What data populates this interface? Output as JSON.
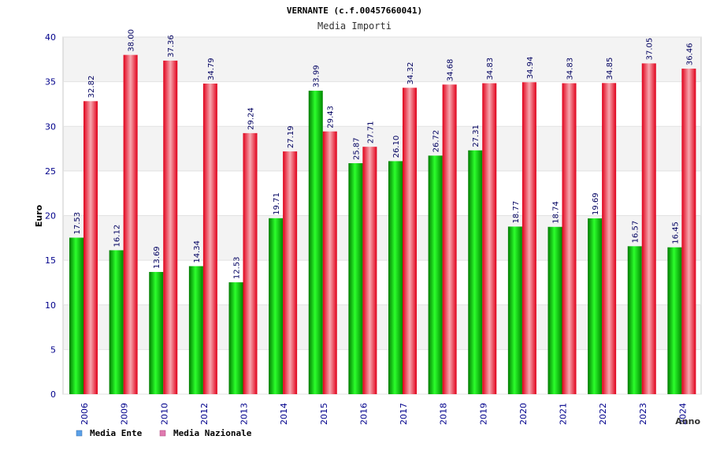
{
  "chart_data": {
    "type": "bar",
    "title": "VERNANTE (c.f.00457660041)",
    "subtitle": "Media Importi",
    "xlabel": "Anno",
    "ylabel": "Euro",
    "ylim": [
      0,
      40
    ],
    "yticks": [
      0,
      5,
      10,
      15,
      20,
      25,
      30,
      35,
      40
    ],
    "grid": true,
    "legend_position": "bottom-left",
    "categories": [
      "2006",
      "2009",
      "2010",
      "2012",
      "2013",
      "2014",
      "2015",
      "2016",
      "2017",
      "2018",
      "2019",
      "2020",
      "2021",
      "2022",
      "2023",
      "2024"
    ],
    "series": [
      {
        "name": "Media Ente",
        "color": "#00c000",
        "legend_color": "#5aa0e8",
        "values": [
          17.53,
          16.12,
          13.69,
          14.34,
          12.53,
          19.71,
          33.99,
          25.87,
          26.1,
          26.72,
          27.31,
          18.77,
          18.74,
          19.69,
          16.57,
          16.45
        ],
        "labels": [
          "17.53",
          "16.12",
          "13.69",
          "14.34",
          "12.53",
          "19.71",
          "33.99",
          "25.87",
          "26.10",
          "26.72",
          "27.31",
          "18.77",
          "18.74",
          "19.69",
          "16.57",
          "16.45"
        ]
      },
      {
        "name": "Media Nazionale",
        "color": "#e8202a",
        "legend_color": "#e07ab0",
        "values": [
          32.82,
          38.0,
          37.36,
          34.79,
          29.24,
          27.19,
          29.43,
          27.71,
          34.32,
          34.68,
          34.83,
          34.94,
          34.83,
          34.85,
          37.05,
          36.46
        ],
        "labels": [
          "32.82",
          "38.00",
          "37.36",
          "34.79",
          "29.24",
          "27.19",
          "29.43",
          "27.71",
          "34.32",
          "34.68",
          "34.83",
          "34.94",
          "34.83",
          "34.85",
          "37.05",
          "36.46"
        ]
      }
    ]
  }
}
